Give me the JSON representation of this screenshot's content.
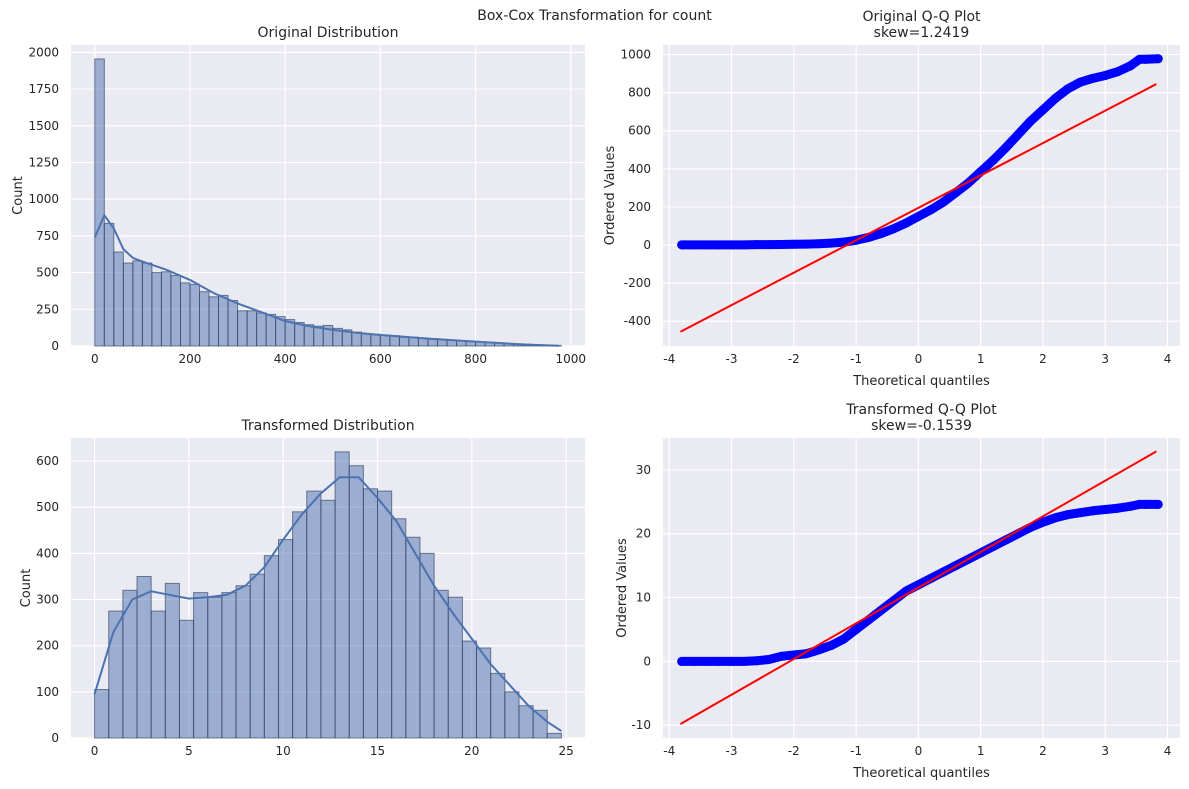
{
  "suptitle": "Box-Cox Transformation for count",
  "colors": {
    "axes_bg": "#EAEAF2",
    "grid": "#FFFFFF",
    "hist_fill": "#4C72B0",
    "kde_line": "#4C72B0",
    "qq_points": "#0000FF",
    "qq_line": "#FF0000"
  },
  "chart_data": [
    {
      "id": "orig_hist",
      "type": "bar",
      "title": "Original Distribution",
      "xlabel": "",
      "ylabel": "Count",
      "xlim": [
        -50,
        1030
      ],
      "ylim": [
        0,
        2050
      ],
      "xticks": [
        0,
        200,
        400,
        600,
        800,
        1000
      ],
      "yticks": [
        0,
        250,
        500,
        750,
        1000,
        1250,
        1500,
        1750,
        2000
      ],
      "bin_start": 0,
      "bin_width": 20,
      "values": [
        1955,
        835,
        640,
        565,
        580,
        565,
        500,
        505,
        480,
        430,
        420,
        370,
        335,
        345,
        310,
        240,
        240,
        225,
        215,
        200,
        180,
        160,
        145,
        135,
        140,
        120,
        110,
        95,
        85,
        80,
        75,
        70,
        60,
        60,
        55,
        50,
        45,
        40,
        35,
        30,
        28,
        25,
        22,
        18,
        15,
        12,
        10,
        6,
        4
      ],
      "kde": {
        "x": [
          0,
          20,
          40,
          60,
          80,
          100,
          150,
          200,
          250,
          300,
          350,
          400,
          450,
          500,
          550,
          600,
          700,
          800,
          900,
          975
        ],
        "y": [
          740,
          890,
          800,
          660,
          600,
          575,
          520,
          450,
          360,
          290,
          230,
          170,
          135,
          110,
          90,
          75,
          50,
          30,
          10,
          2
        ]
      }
    },
    {
      "id": "orig_qq",
      "type": "scatter",
      "title": "Original Q-Q Plot\nskew=1.2419",
      "xlabel": "Theoretical quantiles",
      "ylabel": "Ordered Values",
      "xlim": [
        -4.1,
        4.2
      ],
      "ylim": [
        -530,
        1050
      ],
      "xticks": [
        -4,
        -3,
        -2,
        -1,
        0,
        1,
        2,
        3,
        4
      ],
      "yticks": [
        -400,
        -200,
        0,
        200,
        400,
        600,
        800,
        1000
      ],
      "points": [
        [
          -3.8,
          1
        ],
        [
          -3.6,
          1
        ],
        [
          -3.4,
          1
        ],
        [
          -3.2,
          1
        ],
        [
          -3.0,
          1
        ],
        [
          -2.8,
          1
        ],
        [
          -2.6,
          2
        ],
        [
          -2.4,
          2
        ],
        [
          -2.2,
          3
        ],
        [
          -2.0,
          4
        ],
        [
          -1.8,
          5
        ],
        [
          -1.6,
          7
        ],
        [
          -1.4,
          10
        ],
        [
          -1.2,
          15
        ],
        [
          -1.0,
          25
        ],
        [
          -0.8,
          40
        ],
        [
          -0.6,
          60
        ],
        [
          -0.4,
          85
        ],
        [
          -0.2,
          115
        ],
        [
          0.0,
          150
        ],
        [
          0.2,
          185
        ],
        [
          0.4,
          225
        ],
        [
          0.6,
          275
        ],
        [
          0.8,
          325
        ],
        [
          1.0,
          385
        ],
        [
          1.2,
          445
        ],
        [
          1.4,
          510
        ],
        [
          1.6,
          580
        ],
        [
          1.8,
          650
        ],
        [
          2.0,
          710
        ],
        [
          2.2,
          770
        ],
        [
          2.4,
          820
        ],
        [
          2.6,
          855
        ],
        [
          2.8,
          875
        ],
        [
          3.0,
          890
        ],
        [
          3.2,
          910
        ],
        [
          3.4,
          940
        ],
        [
          3.55,
          975
        ],
        [
          3.65,
          975
        ],
        [
          3.85,
          978
        ]
      ],
      "fit_line": {
        "x": [
          -3.82,
          3.82
        ],
        "y": [
          -455,
          845
        ]
      }
    },
    {
      "id": "trans_hist",
      "type": "bar",
      "title": "Transformed Distribution",
      "xlabel": "",
      "ylabel": "Count",
      "xlim": [
        -1.25,
        26
      ],
      "ylim": [
        0,
        650
      ],
      "xticks": [
        0,
        5,
        10,
        15,
        20,
        25
      ],
      "yticks": [
        0,
        100,
        200,
        300,
        400,
        500,
        600
      ],
      "bin_start": 0,
      "bin_width": 0.75,
      "values": [
        105,
        275,
        320,
        350,
        275,
        335,
        255,
        315,
        305,
        315,
        330,
        355,
        395,
        430,
        490,
        535,
        515,
        620,
        590,
        540,
        535,
        475,
        435,
        400,
        320,
        305,
        210,
        195,
        140,
        100,
        70,
        60,
        10
      ],
      "kde": {
        "x": [
          0,
          1,
          2,
          3,
          4,
          5,
          6,
          7,
          8,
          9,
          10,
          11,
          12,
          13,
          14,
          15,
          16,
          17,
          18,
          19,
          20,
          21,
          22,
          23,
          24,
          24.75
        ],
        "y": [
          95,
          230,
          300,
          318,
          310,
          302,
          305,
          310,
          330,
          370,
          430,
          485,
          530,
          565,
          565,
          520,
          470,
          400,
          330,
          270,
          215,
          160,
          115,
          70,
          35,
          15
        ]
      }
    },
    {
      "id": "trans_qq",
      "type": "scatter",
      "title": "Transformed Q-Q Plot\nskew=-0.1539",
      "xlabel": "Theoretical quantiles",
      "ylabel": "Ordered Values",
      "xlim": [
        -4.1,
        4.2
      ],
      "ylim": [
        -12,
        35
      ],
      "xticks": [
        -4,
        -3,
        -2,
        -1,
        0,
        1,
        2,
        3,
        4
      ],
      "yticks": [
        -10,
        0,
        10,
        20,
        30
      ],
      "points": [
        [
          -3.8,
          0
        ],
        [
          -3.6,
          0
        ],
        [
          -3.4,
          0
        ],
        [
          -3.2,
          0
        ],
        [
          -3.0,
          0
        ],
        [
          -2.8,
          0
        ],
        [
          -2.6,
          0.1
        ],
        [
          -2.4,
          0.3
        ],
        [
          -2.2,
          0.8
        ],
        [
          -2.0,
          1.0
        ],
        [
          -1.8,
          1.2
        ],
        [
          -1.6,
          1.8
        ],
        [
          -1.4,
          2.5
        ],
        [
          -1.2,
          3.5
        ],
        [
          -1.0,
          5.0
        ],
        [
          -0.8,
          6.5
        ],
        [
          -0.6,
          8.0
        ],
        [
          -0.4,
          9.5
        ],
        [
          -0.2,
          11.0
        ],
        [
          0.0,
          12.0
        ],
        [
          0.2,
          13.0
        ],
        [
          0.4,
          14.0
        ],
        [
          0.6,
          15.0
        ],
        [
          0.8,
          16.0
        ],
        [
          1.0,
          17.0
        ],
        [
          1.2,
          18.0
        ],
        [
          1.4,
          19.0
        ],
        [
          1.6,
          20.0
        ],
        [
          1.8,
          21.0
        ],
        [
          2.0,
          21.8
        ],
        [
          2.2,
          22.5
        ],
        [
          2.4,
          23.0
        ],
        [
          2.6,
          23.3
        ],
        [
          2.8,
          23.6
        ],
        [
          3.0,
          23.8
        ],
        [
          3.2,
          24.0
        ],
        [
          3.4,
          24.3
        ],
        [
          3.55,
          24.6
        ],
        [
          3.65,
          24.6
        ],
        [
          3.85,
          24.6
        ]
      ],
      "fit_line": {
        "x": [
          -3.82,
          3.82
        ],
        "y": [
          -9.8,
          32.9
        ]
      }
    }
  ]
}
